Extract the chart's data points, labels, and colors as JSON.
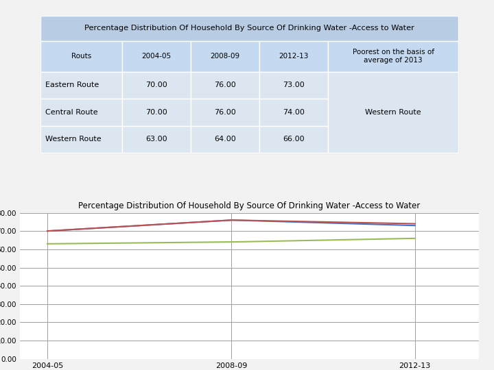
{
  "title_table": "Percentage Distribution Of Household By Source Of Drinking Water -Access to Water",
  "title_chart": "Percentage Distribution Of Household By Source Of Drinking Water -Access to Water",
  "col_headers": [
    "Routs",
    "2004-05",
    "2008-09",
    "2012-13",
    "Poorest on the basis of\naverage of 2013"
  ],
  "rows": [
    [
      "Eastern Route",
      "70.00",
      "76.00",
      "73.00",
      ""
    ],
    [
      "Central Route",
      "70.00",
      "76.00",
      "74.00",
      "Western Route"
    ],
    [
      "Western Route",
      "63.00",
      "64.00",
      "66.00",
      ""
    ]
  ],
  "x_labels": [
    "2004-05",
    "2008-09",
    "2012-13"
  ],
  "series": [
    {
      "name": "Eastern Route",
      "values": [
        70.0,
        76.0,
        73.0
      ],
      "color": "#4472C4"
    },
    {
      "name": "Central Route",
      "values": [
        70.0,
        76.0,
        74.0
      ],
      "color": "#C0504D"
    },
    {
      "name": "Western Route",
      "values": [
        63.0,
        64.0,
        66.0
      ],
      "color": "#9BBB59"
    }
  ],
  "y_min": 0,
  "y_max": 80,
  "y_step": 10,
  "title_bg": "#B8CCE4",
  "header_bg": "#C5D9F1",
  "row_bg": "#DCE6F1",
  "grid_color": "#A0A0A0",
  "border_color": "#FFFFFF",
  "fig_bg": "#F2F2F2"
}
